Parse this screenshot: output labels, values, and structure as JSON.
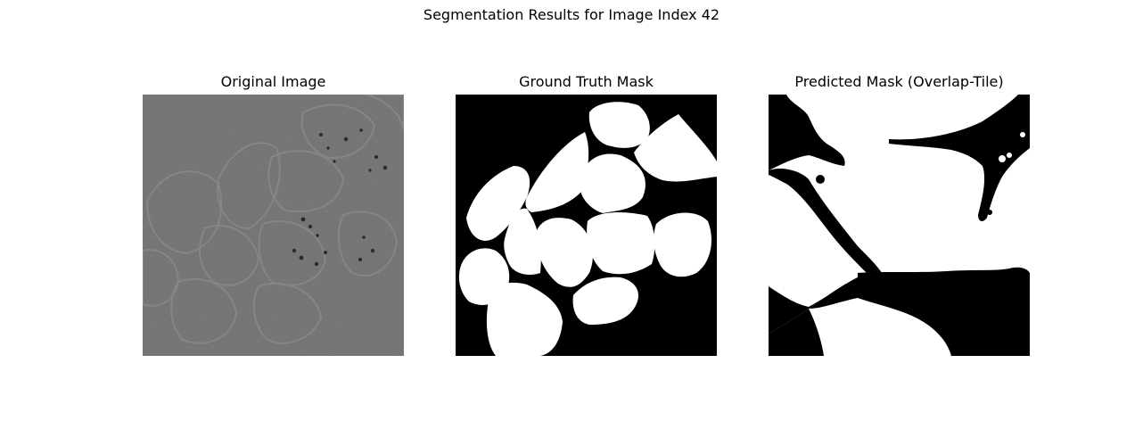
{
  "figure": {
    "title": "Segmentation Results for Image Index 42"
  },
  "panels": [
    {
      "title": "Original Image",
      "kind": "grayscale-microscopy"
    },
    {
      "title": "Ground Truth Mask",
      "kind": "binary-mask"
    },
    {
      "title": "Predicted Mask (Overlap-Tile)",
      "kind": "binary-mask"
    }
  ],
  "colors": {
    "mask_foreground": "#ffffff",
    "mask_background": "#000000",
    "original_background": "#6e6e6e"
  }
}
